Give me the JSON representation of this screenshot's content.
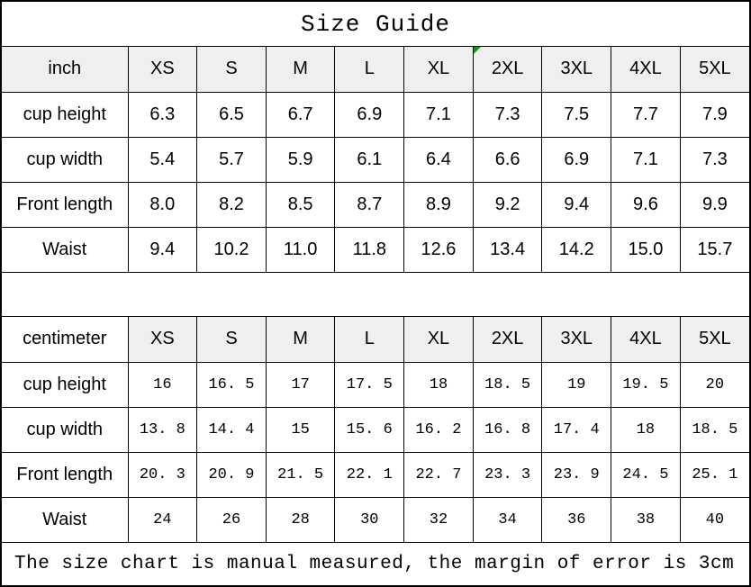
{
  "title": "Size Guide",
  "footer_note": "The size chart is manual measured, the margin of error is 3cm",
  "colors": {
    "header_bg": "#efefef",
    "border": "#000000",
    "marker_green": "#189418",
    "text": "#000000"
  },
  "tables": [
    {
      "unit_header": "inch",
      "unit_header_shaded": true,
      "sizes": [
        "XS",
        "S",
        "M",
        "L",
        "XL",
        "2XL",
        "3XL",
        "4XL",
        "5XL"
      ],
      "corner_marker": {
        "column": "2XL"
      },
      "rows": [
        {
          "label": "cup height",
          "values": [
            "6.3",
            "6.5",
            "6.7",
            "6.9",
            "7.1",
            "7.3",
            "7.5",
            "7.7",
            "7.9"
          ]
        },
        {
          "label": "cup width",
          "values": [
            "5.4",
            "5.7",
            "5.9",
            "6.1",
            "6.4",
            "6.6",
            "6.9",
            "7.1",
            "7.3"
          ]
        },
        {
          "label": "Front length",
          "values": [
            "8.0",
            "8.2",
            "8.5",
            "8.7",
            "8.9",
            "9.2",
            "9.4",
            "9.6",
            "9.9"
          ]
        },
        {
          "label": "Waist",
          "values": [
            "9.4",
            "10.2",
            "11.0",
            "11.8",
            "12.6",
            "13.4",
            "14.2",
            "15.0",
            "15.7"
          ]
        }
      ]
    },
    {
      "unit_header": "centimeter",
      "unit_header_shaded": false,
      "sizes": [
        "XS",
        "S",
        "M",
        "L",
        "XL",
        "2XL",
        "3XL",
        "4XL",
        "5XL"
      ],
      "rows": [
        {
          "label": "cup height",
          "values": [
            "16",
            "16. 5",
            "17",
            "17. 5",
            "18",
            "18. 5",
            "19",
            "19. 5",
            "20"
          ]
        },
        {
          "label": "cup width",
          "values": [
            "13. 8",
            "14. 4",
            "15",
            "15. 6",
            "16. 2",
            "16. 8",
            "17. 4",
            "18",
            "18. 5"
          ]
        },
        {
          "label": "Front length",
          "values": [
            "20. 3",
            "20. 9",
            "21. 5",
            "22. 1",
            "22. 7",
            "23. 3",
            "23. 9",
            "24. 5",
            "25. 1"
          ]
        },
        {
          "label": "Waist",
          "values": [
            "24",
            "26",
            "28",
            "30",
            "32",
            "34",
            "36",
            "38",
            "40"
          ]
        }
      ]
    }
  ]
}
